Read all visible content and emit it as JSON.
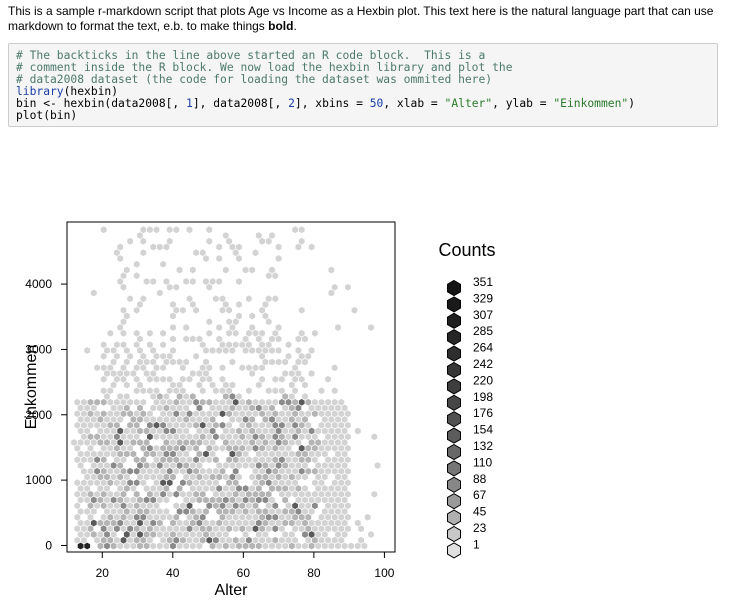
{
  "intro": {
    "text_before_bold": "This is a sample r-markdown script that plots Age vs Income as a Hexbin plot. This text here is the natural language part that can use markdown to format the text, e.b. to make things ",
    "bold": "bold",
    "text_after_bold": "."
  },
  "code": {
    "comment1": "# The backticks in the line above started an R code block.  This is a",
    "comment2": "# comment inside the R block. We now load the hexbin library and plot the",
    "comment3": "# data2008 dataset (the code for loading the dataset was ommited here)",
    "l4_fn": "library",
    "l4_rest": "(hexbin)",
    "l5_a": "bin <- hexbin(data2008[, ",
    "l5_n1": "1",
    "l5_b": "], data2008[, ",
    "l5_n2": "2",
    "l5_c": "], xbins = ",
    "l5_n3": "50",
    "l5_d": ", xlab = ",
    "l5_s1": "\"Alter\"",
    "l5_e": ", ylab = ",
    "l5_s2": "\"Einkommen\"",
    "l5_f": ")",
    "l6": "plot(bin)"
  },
  "chart_data": {
    "type": "heatmap",
    "subtype": "hexbin",
    "xlabel": "Alter",
    "ylabel": "Einkommen",
    "xlim": [
      10,
      103
    ],
    "ylim": [
      -100,
      4950
    ],
    "xticks": [
      20,
      40,
      60,
      80,
      100
    ],
    "yticks": [
      0,
      1000,
      2000,
      3000,
      4000
    ],
    "xtick_labels": [
      "20",
      "40",
      "60",
      "80",
      "100"
    ],
    "ytick_labels": [
      "0",
      "1000",
      "2000",
      "3000",
      "4000"
    ],
    "xbins": 50,
    "legend": {
      "title": "Counts",
      "placement": "right",
      "labels": [
        "351",
        "329",
        "307",
        "285",
        "264",
        "242",
        "220",
        "198",
        "176",
        "154",
        "132",
        "110",
        "88",
        "67",
        "45",
        "23",
        "1"
      ],
      "colors": [
        "#141414",
        "#1a1a1a",
        "#202020",
        "#262626",
        "#2e2e2e",
        "#363636",
        "#3e3e3e",
        "#474747",
        "#515151",
        "#5c5c5c",
        "#686868",
        "#767676",
        "#878787",
        "#9a9a9a",
        "#b0b0b0",
        "#c8c8c8",
        "#e0e0e0"
      ]
    },
    "cell_colors": {
      "light": "#d3d3d3",
      "mid": "#b4b4b4",
      "dark": "#8a8a8a",
      "darker": "#5a5a5a",
      "darkest": "#222222"
    }
  }
}
